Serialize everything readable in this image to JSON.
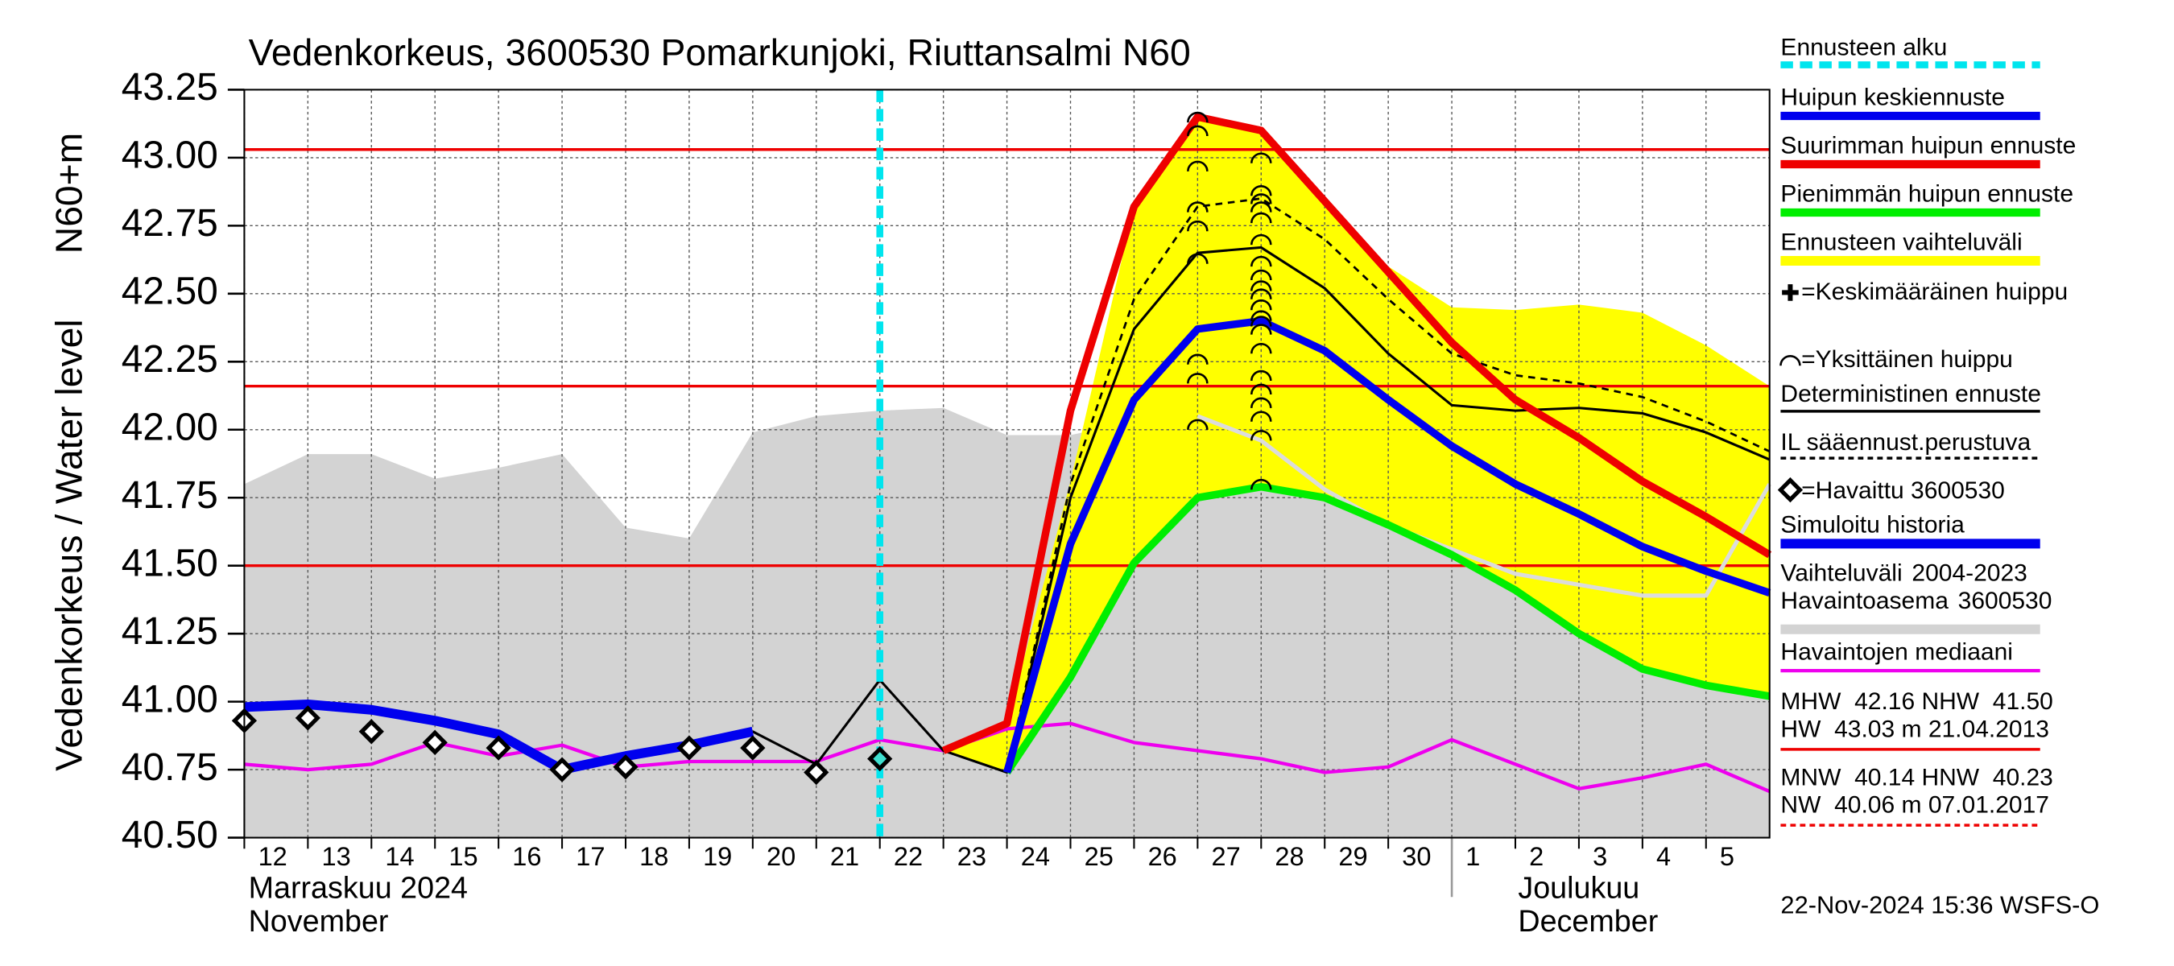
{
  "chart_data": {
    "type": "line",
    "title": "Vedenkorkeus, 3600530 Pomarkunjoki, Riuttansalmi N60",
    "ylabel": "Vedenkorkeus / Water level",
    "ylabel2": "N60+m",
    "xlim": [
      0,
      24
    ],
    "ylim": [
      40.5,
      43.25
    ],
    "grid": true,
    "yticks": [
      {
        "value": 40.5,
        "label": "40.50"
      },
      {
        "value": 40.75,
        "label": "40.75"
      },
      {
        "value": 41,
        "label": "41.00"
      },
      {
        "value": 41.25,
        "label": "41.25"
      },
      {
        "value": 41.5,
        "label": "41.50"
      },
      {
        "value": 41.75,
        "label": "41.75"
      },
      {
        "value": 42,
        "label": "42.00"
      },
      {
        "value": 42.25,
        "label": "42.25"
      },
      {
        "value": 42.5,
        "label": "42.50"
      },
      {
        "value": 42.75,
        "label": "42.75"
      },
      {
        "value": 43,
        "label": "43.00"
      },
      {
        "value": 43.25,
        "label": "43.25"
      }
    ],
    "xticks": [
      {
        "value": 0,
        "label": "12"
      },
      {
        "value": 1,
        "label": "13"
      },
      {
        "value": 2,
        "label": "14"
      },
      {
        "value": 3,
        "label": "15"
      },
      {
        "value": 4,
        "label": "16"
      },
      {
        "value": 5,
        "label": "17"
      },
      {
        "value": 6,
        "label": "18"
      },
      {
        "value": 7,
        "label": "19"
      },
      {
        "value": 8,
        "label": "20"
      },
      {
        "value": 9,
        "label": "21"
      },
      {
        "value": 10,
        "label": "22"
      },
      {
        "value": 11,
        "label": "23"
      },
      {
        "value": 12,
        "label": "24"
      },
      {
        "value": 13,
        "label": "25"
      },
      {
        "value": 14,
        "label": "26"
      },
      {
        "value": 15,
        "label": "27"
      },
      {
        "value": 16,
        "label": "28"
      },
      {
        "value": 17,
        "label": "29"
      },
      {
        "value": 18,
        "label": "30"
      },
      {
        "value": 19,
        "label": "1"
      },
      {
        "value": 20,
        "label": "2"
      },
      {
        "value": 21,
        "label": "3"
      },
      {
        "value": 22,
        "label": "4"
      },
      {
        "value": 23,
        "label": "5"
      }
    ],
    "months": [
      {
        "x": 0,
        "name": "Marraskuu 2024",
        "name_en": "November"
      },
      {
        "x": 19,
        "name": "Joulukuu",
        "name_en": "December"
      }
    ],
    "forecast_start": {
      "name": "Ennusteen alku",
      "x": 10,
      "color": "#00e5ee"
    },
    "hlines": {
      "values": [
        43.03,
        42.16,
        41.5
      ],
      "color": "#ee0000"
    },
    "series": [
      {
        "name": "Vaihteluväli 2004-2023 Havaintoasema 3600530",
        "kind": "area",
        "color": "#d3d3d3",
        "x": [
          0,
          1,
          2,
          3,
          4,
          5,
          6,
          7,
          8,
          9,
          10,
          11,
          12,
          13,
          14,
          15,
          16,
          17,
          18,
          19,
          20,
          21,
          22,
          23,
          24
        ],
        "values": [
          41.8,
          41.91,
          41.91,
          41.82,
          41.86,
          41.91,
          41.64,
          41.6,
          41.99,
          42.05,
          42.07,
          42.08,
          41.98,
          41.98,
          42.03,
          42.05,
          42.2,
          42.5,
          42.6,
          42.4,
          42.3,
          42.2,
          42.1,
          42.0,
          41.82
        ]
      },
      {
        "name": "Ennusteen vaihteluväli",
        "kind": "band",
        "color": "#ffff00",
        "x": [
          11,
          12,
          13,
          14,
          15,
          16,
          17,
          18,
          19,
          20,
          21,
          22,
          23,
          24
        ],
        "values": [
          40.82,
          40.92,
          41.81,
          42.82,
          43.15,
          43.1,
          42.84,
          42.6,
          42.45,
          42.44,
          42.46,
          42.43,
          42.31,
          42.16
        ],
        "low": [
          40.82,
          40.74,
          41.09,
          41.51,
          41.75,
          41.79,
          41.75,
          41.65,
          41.54,
          41.41,
          41.25,
          41.12,
          41.06,
          41.02
        ]
      },
      {
        "name": "Havaintojen mediaani",
        "kind": "line",
        "color": "#ee00ee",
        "width": 2.5,
        "x": [
          0,
          1,
          2,
          3,
          4,
          5,
          6,
          7,
          8,
          9,
          10,
          11,
          12,
          13,
          14,
          15,
          16,
          17,
          18,
          19,
          20,
          21,
          22,
          23,
          24
        ],
        "values": [
          40.77,
          40.75,
          40.77,
          40.85,
          40.8,
          40.84,
          40.76,
          40.78,
          40.78,
          40.78,
          40.86,
          40.82,
          40.9,
          40.92,
          40.85,
          40.82,
          40.79,
          40.74,
          40.76,
          40.86,
          40.77,
          40.68,
          40.72,
          40.77,
          40.67
        ]
      },
      {
        "kind": "line",
        "color": "#dcdcdc",
        "width": 3,
        "x": [
          15,
          16,
          17,
          18,
          19,
          20,
          21,
          22,
          23,
          24
        ],
        "values": [
          42.05,
          41.96,
          41.78,
          41.65,
          41.56,
          41.47,
          41.43,
          41.39,
          41.39,
          41.8
        ]
      },
      {
        "name": "IL sääennust.perustuva",
        "kind": "line",
        "color": "#000000",
        "width": 1.6,
        "dash": "5 4",
        "x": [
          12,
          13,
          14,
          15,
          16,
          17,
          18,
          19,
          20,
          21,
          22,
          23,
          24
        ],
        "values": [
          40.74,
          41.8,
          42.48,
          42.82,
          42.85,
          42.7,
          42.48,
          42.28,
          42.2,
          42.17,
          42.12,
          42.03,
          41.92
        ]
      },
      {
        "name": "Deterministinen ennuste",
        "kind": "line",
        "color": "#000000",
        "width": 1.8,
        "x": [
          8,
          9,
          10,
          11,
          12,
          13,
          14,
          15,
          16,
          17,
          18,
          19,
          20,
          21,
          22,
          23,
          24
        ],
        "values": [
          40.89,
          40.77,
          41.08,
          40.82,
          40.74,
          41.75,
          42.37,
          42.65,
          42.67,
          42.52,
          42.28,
          42.09,
          42.07,
          42.08,
          42.06,
          41.99,
          41.89
        ]
      },
      {
        "name": "Pienimmän huipun ennuste",
        "kind": "line",
        "color": "#00ee00",
        "width": 5.5,
        "x": [
          12,
          13,
          14,
          15,
          16,
          17,
          18,
          19,
          20,
          21,
          22,
          23,
          24
        ],
        "values": [
          40.74,
          41.09,
          41.51,
          41.75,
          41.79,
          41.75,
          41.65,
          41.54,
          41.41,
          41.25,
          41.12,
          41.06,
          41.02
        ]
      },
      {
        "name": "Suurimman huipun ennuste",
        "kind": "line",
        "color": "#ee0000",
        "width": 5.5,
        "x": [
          11,
          12,
          13,
          14,
          15,
          16,
          17,
          18,
          19,
          20,
          21,
          22,
          23,
          24
        ],
        "values": [
          40.82,
          40.92,
          42.07,
          42.82,
          43.15,
          43.1,
          42.84,
          42.58,
          42.32,
          42.11,
          41.97,
          41.81,
          41.68,
          41.54
        ]
      },
      {
        "name": "Huipun keskiennuste",
        "kind": "line",
        "color": "#0000ee",
        "width": 5.5,
        "x": [
          12,
          13,
          14,
          15,
          16,
          17,
          18,
          19,
          20,
          21,
          22,
          23,
          24
        ],
        "values": [
          40.74,
          41.58,
          42.11,
          42.37,
          42.4,
          42.29,
          42.11,
          41.94,
          41.8,
          41.69,
          41.57,
          41.48,
          41.4
        ]
      },
      {
        "name": "Simuloitu historia",
        "kind": "line",
        "color": "#0000ee",
        "width": 7,
        "x": [
          0,
          1,
          2,
          3,
          4,
          5,
          6,
          7,
          8
        ],
        "values": [
          40.98,
          40.99,
          40.97,
          40.93,
          40.88,
          40.75,
          40.8,
          40.84,
          40.89
        ]
      },
      {
        "name": "=Havaittu 3600530",
        "kind": "diamond",
        "color": "#000000",
        "x": [
          0,
          1,
          2,
          3,
          4,
          5,
          6,
          7,
          8,
          9,
          10
        ],
        "values": [
          40.93,
          40.94,
          40.89,
          40.85,
          40.83,
          40.75,
          40.76,
          40.83,
          40.83,
          40.74,
          40.79
        ],
        "fills": [
          "#ffffff",
          "#ffffff",
          "#ffffff",
          "#ffffff",
          "#ffffff",
          "#ffffff",
          "#ffffff",
          "#ffffff",
          "#ffffff",
          "#ffffff",
          "#40e0d0"
        ]
      },
      {
        "name": "=Yksittäinen huippu",
        "kind": "arc",
        "color": "#000000",
        "x": [
          15,
          15,
          15,
          15,
          15,
          15,
          15,
          15,
          15,
          16,
          16,
          16,
          16,
          16,
          16,
          16,
          16,
          16,
          16,
          16,
          16,
          16,
          16,
          16,
          16,
          16,
          16,
          16,
          16,
          16
        ],
        "values": [
          43.15,
          43.1,
          42.97,
          42.82,
          42.75,
          42.63,
          42.26,
          42.19,
          42.02,
          43.0,
          42.88,
          42.85,
          42.82,
          42.78,
          42.7,
          42.62,
          42.57,
          42.53,
          42.5,
          42.46,
          42.42,
          42.4,
          42.37,
          42.3,
          42.2,
          42.15,
          42.1,
          42.05,
          41.98,
          41.8
        ]
      }
    ],
    "legend_only": [
      "=Keskimääräinen huippu"
    ],
    "stats": [
      "MHW  42.16 NHW  41.50",
      "HW  43.03 m 21.04.2013",
      "MNW  40.14 HNW  40.23",
      "NW  40.06 m 07.01.2017"
    ],
    "footer": "22-Nov-2024 15:36 WSFS-O"
  }
}
